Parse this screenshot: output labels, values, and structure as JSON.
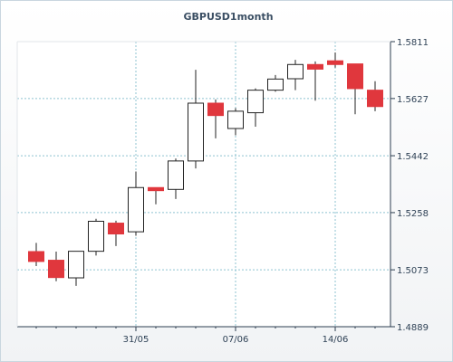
{
  "chart_data": {
    "type": "candlestick",
    "title": "GBPUSD1month",
    "xlabel": "",
    "ylabel": "",
    "ylim": [
      1.4889,
      1.5811
    ],
    "y_ticks": [
      "1.5811",
      "1.5627",
      "1.5442",
      "1.5258",
      "1.5073",
      "1.4889"
    ],
    "x_ticks": [
      "31/05",
      "07/06",
      "14/06"
    ],
    "grid": true,
    "colors": {
      "up": "#ffffff",
      "down": "#e0373d",
      "axis": "#2c3e50",
      "grid": "#8fc3d1",
      "title": "#3a4e63"
    },
    "candles": [
      {
        "open": 1.5132,
        "high": 1.516,
        "low": 1.5085,
        "close": 1.51
      },
      {
        "open": 1.5104,
        "high": 1.5132,
        "low": 1.5036,
        "close": 1.5048
      },
      {
        "open": 1.5047,
        "high": 1.5133,
        "low": 1.5021,
        "close": 1.5133
      },
      {
        "open": 1.5133,
        "high": 1.5238,
        "low": 1.5119,
        "close": 1.523
      },
      {
        "open": 1.5224,
        "high": 1.5232,
        "low": 1.515,
        "close": 1.5189
      },
      {
        "open": 1.5196,
        "high": 1.5391,
        "low": 1.5183,
        "close": 1.5339
      },
      {
        "open": 1.5339,
        "high": 1.5339,
        "low": 1.5285,
        "close": 1.5329
      },
      {
        "open": 1.5333,
        "high": 1.5433,
        "low": 1.5302,
        "close": 1.5425
      },
      {
        "open": 1.5425,
        "high": 1.572,
        "low": 1.5401,
        "close": 1.5612
      },
      {
        "open": 1.5612,
        "high": 1.5624,
        "low": 1.5498,
        "close": 1.5572
      },
      {
        "open": 1.553,
        "high": 1.5596,
        "low": 1.5508,
        "close": 1.5586
      },
      {
        "open": 1.5581,
        "high": 1.566,
        "low": 1.5536,
        "close": 1.5654
      },
      {
        "open": 1.5654,
        "high": 1.5703,
        "low": 1.5649,
        "close": 1.569
      },
      {
        "open": 1.5691,
        "high": 1.5752,
        "low": 1.5654,
        "close": 1.5737
      },
      {
        "open": 1.5737,
        "high": 1.5747,
        "low": 1.562,
        "close": 1.5722
      },
      {
        "open": 1.5749,
        "high": 1.5776,
        "low": 1.5727,
        "close": 1.5737
      },
      {
        "open": 1.5739,
        "high": 1.5739,
        "low": 1.5576,
        "close": 1.5659
      },
      {
        "open": 1.5654,
        "high": 1.5683,
        "low": 1.5586,
        "close": 1.5601
      }
    ]
  }
}
